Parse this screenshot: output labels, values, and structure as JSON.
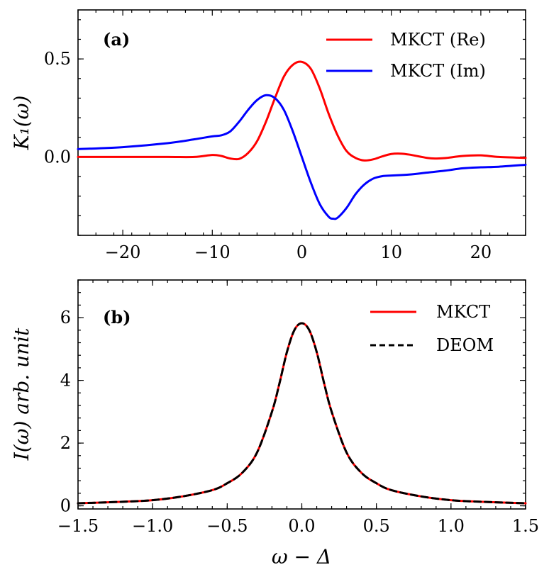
{
  "chart_data": [
    {
      "type": "line",
      "panel_label": "(a)",
      "xlabel": "",
      "ylabel": "K₁(ω)",
      "xlim": [
        -25,
        25
      ],
      "ylim": [
        -0.4,
        0.75
      ],
      "xticks": [
        -20,
        -10,
        0,
        10,
        20
      ],
      "xtick_labels": [
        "−20",
        "−10",
        "0",
        "10",
        "20"
      ],
      "yticks": [
        0.0,
        0.5
      ],
      "ytick_labels": [
        "0.0",
        "0.5"
      ],
      "legend_position": "top-right",
      "series": [
        {
          "name": "MKCT (Re)",
          "color": "#ff0000",
          "dash": "solid",
          "x": [
            -25,
            -20,
            -15,
            -12,
            -10,
            -9,
            -8,
            -7,
            -6,
            -5,
            -4,
            -3,
            -2,
            -1,
            0,
            1,
            2,
            3,
            4,
            5,
            6,
            7,
            8,
            9,
            10,
            11,
            12,
            14,
            15,
            16,
            18,
            20,
            22,
            25
          ],
          "y": [
            0.0,
            0.0,
            0.0,
            0.0,
            0.01,
            0.005,
            -0.008,
            -0.01,
            0.02,
            0.08,
            0.18,
            0.3,
            0.41,
            0.47,
            0.485,
            0.45,
            0.35,
            0.22,
            0.11,
            0.03,
            -0.005,
            -0.018,
            -0.012,
            0.003,
            0.015,
            0.017,
            0.012,
            -0.005,
            -0.008,
            -0.006,
            0.005,
            0.008,
            0.0,
            -0.005
          ]
        },
        {
          "name": "MKCT (Im)",
          "color": "#0000ff",
          "dash": "solid",
          "x": [
            -25,
            -20,
            -15,
            -12,
            -10,
            -9,
            -8,
            -7,
            -6,
            -5,
            -4,
            -3,
            -2,
            -1,
            0,
            1,
            2,
            3,
            3.5,
            4,
            5,
            6,
            7,
            8,
            9,
            10,
            12,
            14,
            16,
            18,
            20,
            22,
            25
          ],
          "y": [
            0.04,
            0.05,
            0.07,
            0.09,
            0.105,
            0.11,
            0.13,
            0.18,
            0.24,
            0.29,
            0.315,
            0.3,
            0.24,
            0.13,
            0.0,
            -0.13,
            -0.24,
            -0.305,
            -0.315,
            -0.31,
            -0.26,
            -0.19,
            -0.14,
            -0.11,
            -0.098,
            -0.095,
            -0.09,
            -0.08,
            -0.07,
            -0.058,
            -0.053,
            -0.05,
            -0.04
          ]
        }
      ]
    },
    {
      "type": "line",
      "panel_label": "(b)",
      "xlabel": "ω − Δ",
      "ylabel": "I(ω) arb. unit",
      "xlim": [
        -1.5,
        1.5
      ],
      "ylim": [
        -0.1,
        7.2
      ],
      "xticks": [
        -1.5,
        -1.0,
        -0.5,
        0.0,
        0.5,
        1.0,
        1.5
      ],
      "xtick_labels": [
        "−1.5",
        "−1.0",
        "−0.5",
        "0.0",
        "0.5",
        "1.0",
        "1.5"
      ],
      "yticks": [
        0,
        2,
        4,
        6
      ],
      "ytick_labels": [
        "0",
        "2",
        "4",
        "6"
      ],
      "legend_position": "top-right",
      "series": [
        {
          "name": "MKCT",
          "color": "#ff0000",
          "dash": "solid",
          "x": [
            -1.5,
            -1.2,
            -1.0,
            -0.8,
            -0.6,
            -0.5,
            -0.4,
            -0.3,
            -0.2,
            -0.15,
            -0.1,
            -0.05,
            0.0,
            0.05,
            0.1,
            0.15,
            0.2,
            0.3,
            0.4,
            0.5,
            0.6,
            0.8,
            1.0,
            1.2,
            1.5
          ],
          "y": [
            0.08,
            0.13,
            0.18,
            0.3,
            0.5,
            0.72,
            1.05,
            1.7,
            3.0,
            3.9,
            4.9,
            5.6,
            5.82,
            5.6,
            4.9,
            3.9,
            3.0,
            1.7,
            1.05,
            0.72,
            0.5,
            0.3,
            0.18,
            0.13,
            0.08
          ]
        },
        {
          "name": "DEOM",
          "color": "#000000",
          "dash": "dashed",
          "x": [
            -1.5,
            -1.2,
            -1.0,
            -0.8,
            -0.6,
            -0.5,
            -0.4,
            -0.3,
            -0.2,
            -0.15,
            -0.1,
            -0.05,
            0.0,
            0.05,
            0.1,
            0.15,
            0.2,
            0.3,
            0.4,
            0.5,
            0.6,
            0.8,
            1.0,
            1.2,
            1.5
          ],
          "y": [
            0.08,
            0.13,
            0.18,
            0.3,
            0.5,
            0.72,
            1.05,
            1.7,
            3.0,
            3.9,
            4.9,
            5.6,
            5.82,
            5.6,
            4.9,
            3.9,
            3.0,
            1.7,
            1.05,
            0.72,
            0.5,
            0.3,
            0.18,
            0.13,
            0.08
          ]
        }
      ]
    }
  ]
}
